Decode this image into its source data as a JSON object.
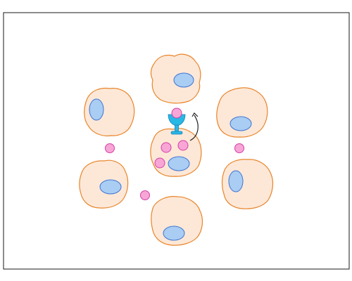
{
  "diagram": {
    "colors": {
      "background": "#ffffff",
      "frame": "#1a1a1a",
      "cell_fill": "#fde8d8",
      "cell_stroke": "#e8852a",
      "nucleus_fill": "#a9cdf3",
      "nucleus_stroke": "#3f74d2",
      "particle_fill": "#f7a6d6",
      "particle_stroke": "#d43fa7",
      "receptor_fill": "#29b7e6",
      "receptor_stroke": "#1682b6",
      "arrow": "#222222"
    },
    "cells": [
      {
        "id": "cell-top",
        "nucleus": "horizontal"
      },
      {
        "id": "cell-upper-left",
        "nucleus": "vertical"
      },
      {
        "id": "cell-upper-right",
        "nucleus": "horizontal"
      },
      {
        "id": "cell-center",
        "nucleus": "horizontal"
      },
      {
        "id": "cell-lower-left",
        "nucleus": "horizontal"
      },
      {
        "id": "cell-lower-right",
        "nucleus": "vertical"
      },
      {
        "id": "cell-bottom",
        "nucleus": "horizontal"
      }
    ],
    "particle_count": 8,
    "receptor_icon": "goblet-receptor-icon",
    "arrow_icon": "curved-arrow-icon"
  }
}
